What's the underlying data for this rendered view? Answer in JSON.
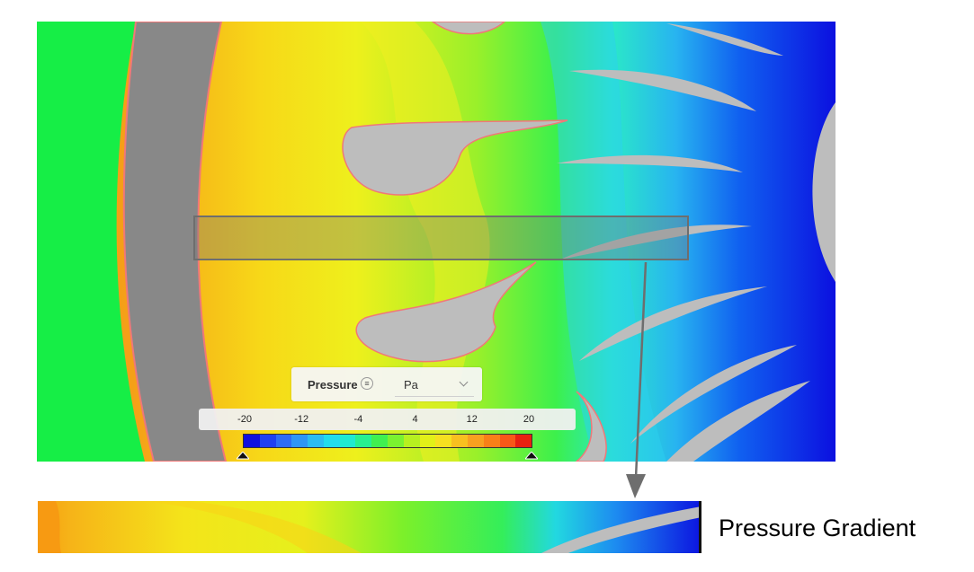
{
  "legend": {
    "field_label": "Pressure",
    "menu_icon": "menu-icon",
    "unit": "Pa",
    "ticks": [
      "-20",
      "-12",
      "-4",
      "4",
      "12",
      "20"
    ],
    "colors": [
      "#1010dd",
      "#2040f0",
      "#2e6cf5",
      "#2e96f5",
      "#2cbcf0",
      "#22dcec",
      "#20ead0",
      "#28f090",
      "#40f050",
      "#7af230",
      "#b6f020",
      "#e2f018",
      "#f6e020",
      "#f8c020",
      "#f8a020",
      "#f88018",
      "#f85818",
      "#e82010"
    ]
  },
  "caption": {
    "text": "Pressure Gradient"
  }
}
